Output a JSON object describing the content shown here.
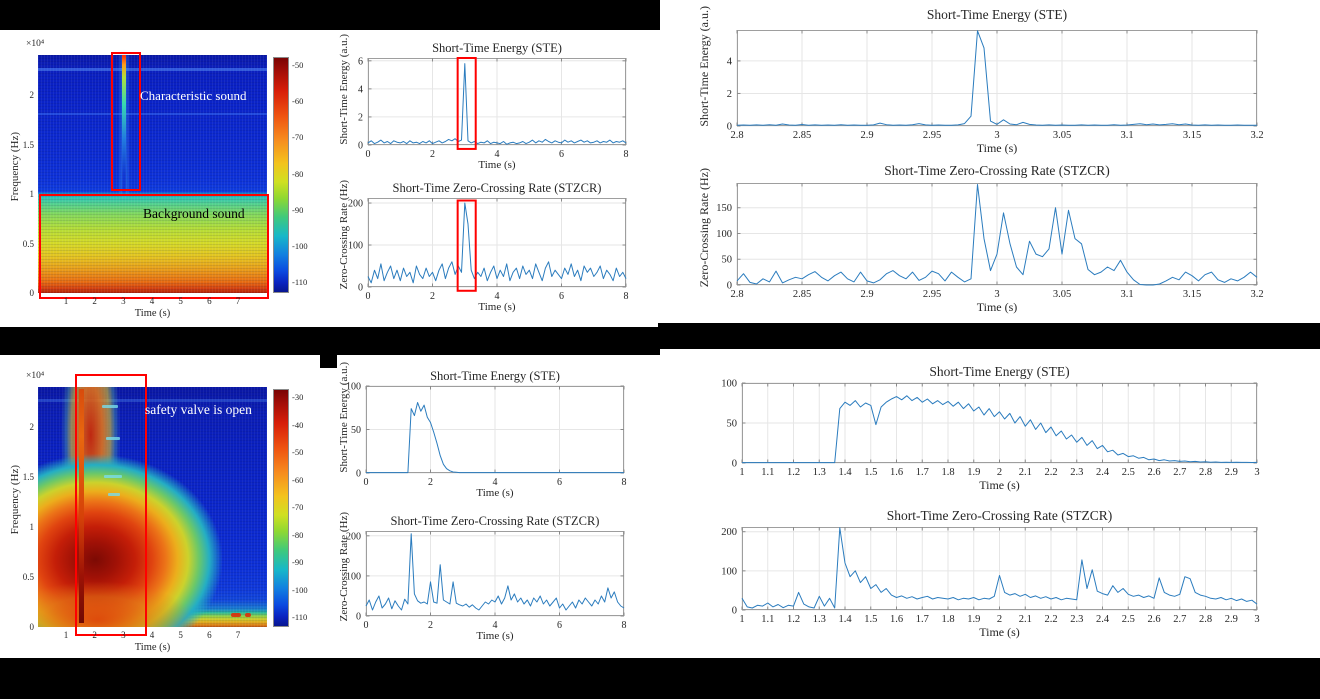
{
  "spectrograms": {
    "top": {
      "ylabel": "Frequency (Hz)",
      "xlabel": "Time (s)",
      "y_exp": "×10⁴",
      "yticks": [
        "2",
        "1.5",
        "1",
        "0.5",
        "0"
      ],
      "xticks": [
        "1",
        "2",
        "3",
        "4",
        "5",
        "6",
        "7"
      ],
      "colorbar_ticks": [
        "-50",
        "-60",
        "-70",
        "-80",
        "-90",
        "-100",
        "-110"
      ],
      "annotation_upper": "Characteristic sound",
      "annotation_lower": "Background sound"
    },
    "bottom": {
      "ylabel": "Frequency (Hz)",
      "xlabel": "Time (s)",
      "y_exp": "×10⁴",
      "yticks": [
        "2",
        "1.5",
        "1",
        "0.5",
        "0"
      ],
      "xticks": [
        "1",
        "2",
        "3",
        "4",
        "5",
        "6",
        "7"
      ],
      "colorbar_ticks": [
        "-30",
        "-40",
        "-50",
        "-60",
        "-70",
        "-80",
        "-90",
        "-100",
        "-110"
      ],
      "annotation": "safety valve is open"
    }
  },
  "chart_data": [
    {
      "id": "tm_ste",
      "type": "line",
      "title": "Short-Time Energy (STE)",
      "xlabel": "Time (s)",
      "ylabel": "Short-Time Energy (a.u.)",
      "xlim": [
        0,
        8
      ],
      "ylim": [
        0,
        6.2
      ],
      "xticks": [
        "0",
        "2",
        "4",
        "6",
        "8"
      ],
      "yticks": [
        "0",
        "2",
        "4",
        "6"
      ],
      "grid": true,
      "color": "#2b7cbe",
      "tick_font": 10,
      "x0": 0,
      "dx": 0.1,
      "y": [
        0.15,
        0.3,
        0.1,
        0.2,
        0.35,
        0.15,
        0.25,
        0.1,
        0.3,
        0.2,
        0.15,
        0.25,
        0.1,
        0.3,
        0.15,
        0.2,
        0.1,
        0.25,
        0.15,
        0.3,
        0.1,
        0.2,
        0.3,
        0.15,
        0.25,
        0.4,
        0.3,
        0.45,
        0.25,
        0.35,
        5.8,
        0.3,
        0.15,
        0.25,
        0.1,
        0.2,
        0.15,
        0.3,
        0.1,
        0.2,
        0.15,
        0.1,
        0.25,
        0.05,
        0.15,
        0.2,
        0.1,
        0.15,
        0.25,
        0.1,
        0.2,
        0.35,
        0.15,
        0.3,
        0.2,
        0.4,
        0.25,
        0.15,
        0.3,
        0.2,
        0.15,
        0.35,
        0.2,
        0.3,
        0.15,
        0.25,
        0.35,
        0.2,
        0.3,
        0.15,
        0.2,
        0.3,
        0.15,
        0.25,
        0.2,
        0.35,
        0.15,
        0.25,
        0.2,
        0.3,
        0.15
      ],
      "highlight": {
        "x": [
          2.78,
          3.34
        ],
        "y": [
          -0.28,
          6.2
        ]
      }
    },
    {
      "id": "tm_stzcr",
      "type": "line",
      "title": "Short-Time Zero-Crossing Rate (STZCR)",
      "xlabel": "Time (s)",
      "ylabel": "Zero-Crossing Rate (Hz)",
      "xlim": [
        0,
        8
      ],
      "ylim": [
        0,
        212
      ],
      "xticks": [
        "0",
        "2",
        "4",
        "6",
        "8"
      ],
      "yticks": [
        "0",
        "100",
        "200"
      ],
      "grid": true,
      "color": "#2b7cbe",
      "tick_font": 10,
      "x0": 0,
      "dx": 0.1,
      "y": [
        25,
        10,
        40,
        20,
        55,
        15,
        35,
        50,
        20,
        40,
        15,
        45,
        25,
        35,
        10,
        50,
        30,
        20,
        45,
        25,
        35,
        15,
        40,
        55,
        20,
        45,
        60,
        30,
        50,
        35,
        200,
        150,
        40,
        20,
        35,
        25,
        45,
        15,
        35,
        50,
        20,
        40,
        25,
        55,
        15,
        35,
        45,
        20,
        50,
        30,
        40,
        20,
        55,
        35,
        15,
        45,
        60,
        25,
        40,
        30,
        20,
        45,
        30,
        55,
        25,
        40,
        15,
        50,
        35,
        45,
        25,
        35,
        50,
        20,
        40,
        30,
        15,
        45,
        25,
        35,
        20
      ],
      "highlight": {
        "x": [
          2.78,
          3.34
        ],
        "y": [
          -9,
          206
        ]
      }
    },
    {
      "id": "tr_ste",
      "type": "line",
      "title": "Short-Time Energy (STE)",
      "xlabel": "Time (s)",
      "ylabel": "Short-Time Energy (a.u.)",
      "xlim": [
        2.8,
        3.2
      ],
      "ylim": [
        0,
        5.9
      ],
      "xticks": [
        "2.8",
        "2.85",
        "2.9",
        "2.95",
        "3",
        "3.05",
        "3.1",
        "3.15",
        "3.2"
      ],
      "yticks": [
        "0",
        "2",
        "4"
      ],
      "grid": true,
      "color": "#2b7cbe",
      "tick_font": 10.5,
      "x0": 2.8,
      "dx": 0.005,
      "y": [
        0.05,
        0.06,
        0.04,
        0.07,
        0.05,
        0.08,
        0.05,
        0.12,
        0.06,
        0.04,
        0.09,
        0.05,
        0.07,
        0.04,
        0.06,
        0.05,
        0.08,
        0.05,
        0.06,
        0.04,
        0.05,
        0.07,
        0.18,
        0.08,
        0.05,
        0.06,
        0.04,
        0.08,
        0.15,
        0.07,
        0.05,
        0.06,
        0.04,
        0.05,
        0.07,
        0.15,
        0.6,
        5.85,
        4.8,
        0.3,
        0.1,
        0.38,
        0.12,
        0.08,
        0.22,
        0.1,
        0.06,
        0.05,
        0.07,
        0.05,
        0.06,
        0.04,
        0.05,
        0.07,
        0.05,
        0.06,
        0.04,
        0.05,
        0.08,
        0.05,
        0.06,
        0.1,
        0.14,
        0.08,
        0.12,
        0.07,
        0.1,
        0.14,
        0.08,
        0.12,
        0.06,
        0.05,
        0.07,
        0.05,
        0.06,
        0.04,
        0.05,
        0.06,
        0.04,
        0.05,
        0.05
      ]
    },
    {
      "id": "tr_stzcr",
      "type": "line",
      "title": "Short-Time Zero-Crossing Rate (STZCR)",
      "xlabel": "Time (s)",
      "ylabel": "Zero-Crossing Rate (Hz)",
      "xlim": [
        2.8,
        3.2
      ],
      "ylim": [
        0,
        198
      ],
      "xticks": [
        "2.8",
        "2.85",
        "2.9",
        "2.95",
        "3",
        "3.05",
        "3.1",
        "3.15",
        "3.2"
      ],
      "yticks": [
        "0",
        "50",
        "100",
        "150"
      ],
      "grid": true,
      "color": "#2b7cbe",
      "tick_font": 10.5,
      "x0": 2.8,
      "dx": 0.005,
      "y": [
        8,
        22,
        5,
        2,
        12,
        6,
        27,
        4,
        10,
        15,
        12,
        20,
        26,
        15,
        8,
        18,
        25,
        12,
        6,
        25,
        8,
        4,
        10,
        22,
        28,
        18,
        12,
        25,
        9,
        15,
        27,
        22,
        8,
        25,
        15,
        6,
        12,
        195,
        90,
        28,
        60,
        140,
        80,
        35,
        20,
        85,
        60,
        55,
        70,
        150,
        60,
        145,
        90,
        80,
        30,
        20,
        25,
        35,
        28,
        48,
        25,
        10,
        1,
        0,
        0,
        2,
        8,
        15,
        10,
        25,
        18,
        8,
        20,
        25,
        10,
        5,
        12,
        8,
        15,
        25,
        15
      ]
    },
    {
      "id": "bm_ste",
      "type": "line",
      "title": "Short-Time Energy (STE)",
      "xlabel": "Time (s)",
      "ylabel": "Short-Time Energy (a.u.)",
      "xlim": [
        0,
        8
      ],
      "ylim": [
        0,
        100
      ],
      "xticks": [
        "0",
        "2",
        "4",
        "6",
        "8"
      ],
      "yticks": [
        "0",
        "50",
        "100"
      ],
      "grid": true,
      "color": "#2b7cbe",
      "tick_font": 10,
      "x0": 0,
      "dx": 0.1,
      "y": [
        0.5,
        0.5,
        0.5,
        0.5,
        0.5,
        0.5,
        0.5,
        0.5,
        0.5,
        0.5,
        0.5,
        0.5,
        0.5,
        0.5,
        74,
        66,
        81,
        71,
        78,
        64,
        58,
        47,
        34,
        20,
        10,
        5,
        2.5,
        1.2,
        0.8,
        0.5,
        0.5,
        0.5,
        0.5,
        0.5,
        0.5,
        0.5,
        0.5,
        0.5,
        0.5,
        0.5,
        0.5,
        0.5,
        0.5,
        0.5,
        0.5,
        0.5,
        0.5,
        0.5,
        0.5,
        0.5,
        0.5,
        0.5,
        0.5,
        0.5,
        0.5,
        0.5,
        0.5,
        0.5,
        0.5,
        0.5,
        0.5,
        0.5,
        0.5,
        0.5,
        0.5,
        0.5,
        0.5,
        0.5,
        0.5,
        0.5,
        0.5,
        0.5,
        0.5,
        0.5,
        0.5,
        0.5,
        0.5,
        0.5,
        0.5,
        0.5,
        0.5
      ]
    },
    {
      "id": "bm_stzcr",
      "type": "line",
      "title": "Short-Time Zero-Crossing Rate (STZCR)",
      "xlabel": "Time (s)",
      "ylabel": "Zero-Crossing Rate (Hz)",
      "xlim": [
        0,
        8
      ],
      "ylim": [
        0,
        212
      ],
      "xticks": [
        "0",
        "2",
        "4",
        "6",
        "8"
      ],
      "yticks": [
        "0",
        "100",
        "200"
      ],
      "grid": true,
      "color": "#2b7cbe",
      "tick_font": 10,
      "x0": 0,
      "dx": 0.1,
      "y": [
        25,
        40,
        15,
        35,
        50,
        20,
        30,
        45,
        18,
        38,
        25,
        15,
        42,
        30,
        205,
        55,
        38,
        32,
        35,
        30,
        85,
        35,
        32,
        128,
        40,
        35,
        30,
        85,
        32,
        28,
        25,
        30,
        22,
        28,
        20,
        15,
        25,
        35,
        30,
        40,
        35,
        50,
        30,
        45,
        75,
        40,
        55,
        35,
        45,
        30,
        40,
        25,
        45,
        35,
        50,
        30,
        40,
        25,
        35,
        45,
        20,
        30,
        15,
        25,
        35,
        20,
        40,
        30,
        45,
        35,
        25,
        40,
        30,
        50,
        35,
        70,
        45,
        60,
        35,
        25,
        20
      ]
    },
    {
      "id": "br_ste",
      "type": "line",
      "title": "Short-Time Energy (STE)",
      "xlabel": "Time (s)",
      "ylabel": "",
      "xlim": [
        1,
        3
      ],
      "ylim": [
        0,
        100
      ],
      "xticks": [
        "1",
        "1.1",
        "1.2",
        "1.3",
        "1.4",
        "1.5",
        "1.6",
        "1.7",
        "1.8",
        "1.9",
        "2",
        "2.1",
        "2.2",
        "2.3",
        "2.4",
        "2.5",
        "2.6",
        "2.7",
        "2.8",
        "2.9",
        "3"
      ],
      "yticks": [
        "0",
        "50",
        "100"
      ],
      "grid": true,
      "color": "#2b7cbe",
      "tick_font": 10.5,
      "x0": 1,
      "dx": 0.02,
      "y": [
        0.5,
        0.5,
        0.5,
        0.5,
        0.5,
        0.5,
        0.5,
        0.5,
        0.5,
        0.5,
        0.5,
        0.5,
        0.5,
        0.5,
        0.5,
        0.5,
        0.5,
        0.5,
        0.5,
        68,
        76,
        72,
        78,
        70,
        75,
        72,
        48,
        70,
        76,
        80,
        83,
        79,
        84,
        78,
        82,
        76,
        80,
        74,
        78,
        73,
        77,
        71,
        76,
        68,
        74,
        65,
        70,
        60,
        68,
        58,
        64,
        55,
        62,
        50,
        58,
        46,
        54,
        42,
        50,
        38,
        45,
        34,
        40,
        30,
        35,
        26,
        32,
        22,
        28,
        18,
        22,
        14,
        16,
        10,
        12,
        8,
        9,
        6,
        7,
        4,
        5,
        3,
        4,
        2.5,
        3,
        2,
        2.5,
        1.5,
        2,
        1.2,
        1.5,
        1,
        1.2,
        0.8,
        1,
        0.8,
        0.9,
        0.7,
        0.8,
        0.6,
        0.7
      ]
    },
    {
      "id": "br_stzcr",
      "type": "line",
      "title": "Short-Time Zero-Crossing Rate (STZCR)",
      "xlabel": "Time (s)",
      "ylabel": "",
      "xlim": [
        1,
        3
      ],
      "ylim": [
        0,
        212
      ],
      "xticks": [
        "1",
        "1.1",
        "1.2",
        "1.3",
        "1.4",
        "1.5",
        "1.6",
        "1.7",
        "1.8",
        "1.9",
        "2",
        "2.1",
        "2.2",
        "2.3",
        "2.4",
        "2.5",
        "2.6",
        "2.7",
        "2.8",
        "2.9",
        "3"
      ],
      "yticks": [
        "0",
        "100",
        "200"
      ],
      "grid": true,
      "color": "#2b7cbe",
      "tick_font": 10.5,
      "x0": 1,
      "dx": 0.02,
      "y": [
        30,
        8,
        5,
        12,
        10,
        18,
        8,
        14,
        6,
        12,
        10,
        45,
        15,
        8,
        5,
        35,
        10,
        30,
        5,
        210,
        120,
        85,
        100,
        70,
        85,
        55,
        65,
        45,
        55,
        38,
        32,
        36,
        30,
        34,
        28,
        32,
        35,
        28,
        32,
        30,
        28,
        32,
        26,
        30,
        28,
        32,
        26,
        30,
        28,
        35,
        88,
        45,
        38,
        42,
        35,
        40,
        32,
        36,
        30,
        34,
        28,
        32,
        26,
        30,
        28,
        26,
        128,
        55,
        103,
        48,
        42,
        38,
        62,
        45,
        55,
        40,
        35,
        38,
        32,
        36,
        30,
        82,
        45,
        38,
        35,
        40,
        85,
        80,
        45,
        38,
        35,
        30,
        28,
        32,
        26,
        30,
        24,
        28,
        22,
        25,
        15
      ]
    }
  ]
}
